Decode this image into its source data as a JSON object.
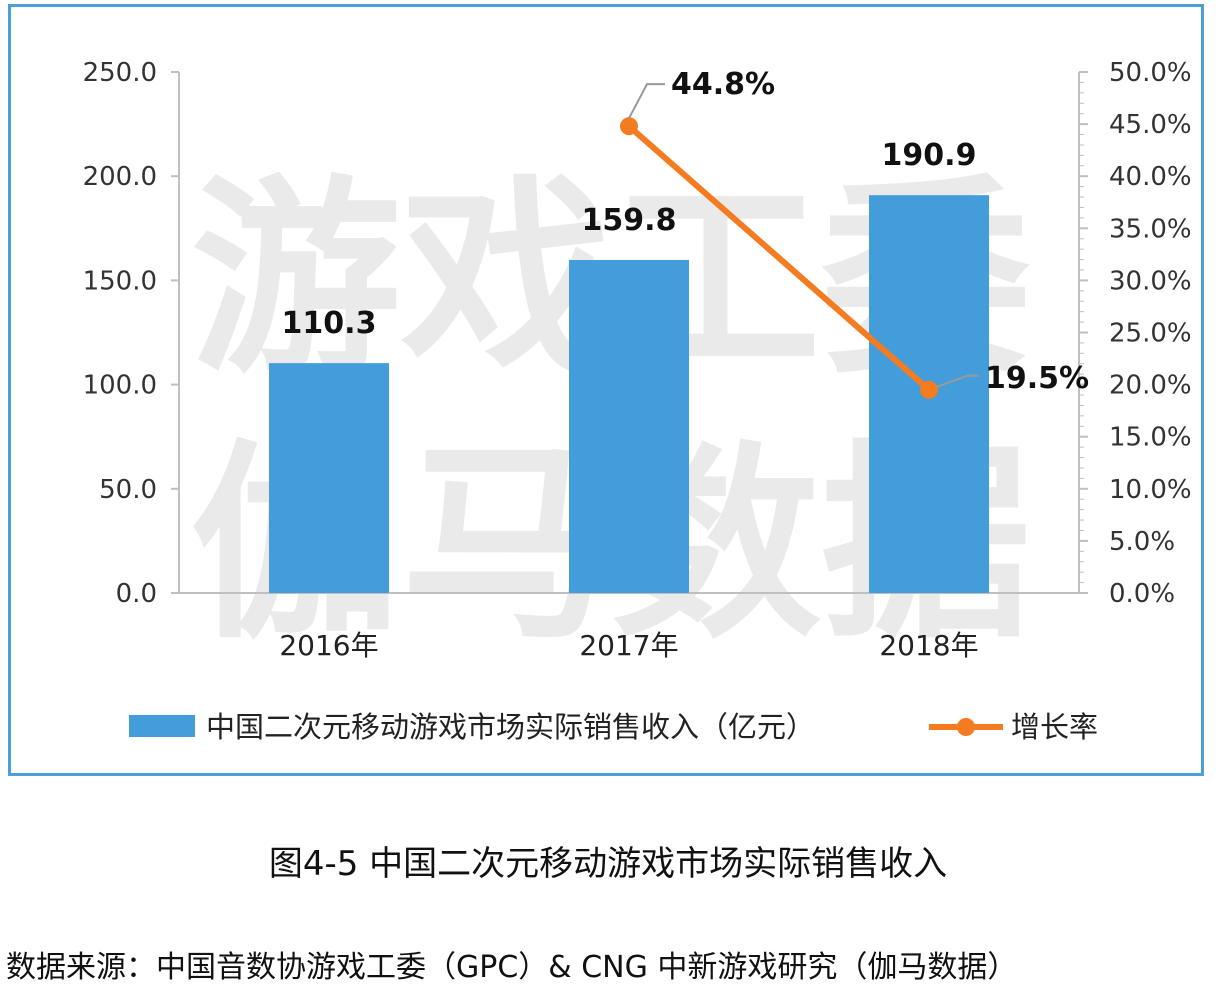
{
  "chart_data": {
    "type": "bar+line",
    "categories": [
      "2016年",
      "2017年",
      "2018年"
    ],
    "series": [
      {
        "name": "中国二次元移动游戏市场实际销售收入（亿元）",
        "type": "bar",
        "axis": "left",
        "values": [
          110.3,
          159.8,
          190.9
        ],
        "labels": [
          "110.3",
          "159.8",
          "190.9"
        ],
        "color": "#449ddb"
      },
      {
        "name": "增长率",
        "type": "line",
        "axis": "right",
        "values": [
          null,
          44.8,
          19.5
        ],
        "labels": [
          "",
          "44.8%",
          "19.5%"
        ],
        "color": "#f47b20"
      }
    ],
    "y_left": {
      "min": 0,
      "max": 250,
      "ticks": [
        "0.0",
        "50.0",
        "100.0",
        "150.0",
        "200.0",
        "250.0"
      ]
    },
    "y_right": {
      "min": 0,
      "max": 50,
      "ticks": [
        "0.0%",
        "5.0%",
        "10.0%",
        "15.0%",
        "20.0%",
        "25.0%",
        "30.0%",
        "35.0%",
        "40.0%",
        "45.0%",
        "50.0%"
      ]
    },
    "legend_position": "bottom",
    "grid": false
  },
  "watermark": {
    "line1": "游戏工委",
    "line2": "伽马数据"
  },
  "caption": "图4-5  中国二次元移动游戏市场实际销售收入",
  "source": "数据来源：中国音数协游戏工委（GPC）& CNG 中新游戏研究（伽马数据）"
}
